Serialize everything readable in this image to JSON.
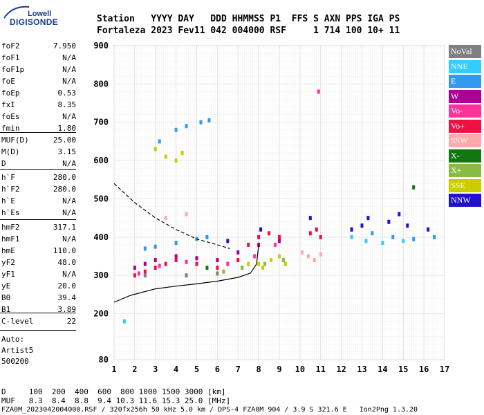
{
  "logo": {
    "top": "Lowell",
    "main": "DIGISONDE"
  },
  "header": {
    "line1": "Station   YYYY DAY   DDD HHMMSS P1  FFS S AXN PPS IGA PS",
    "line2": "Fortaleza 2023 Fev11 042 004000 RSF     1 714 100 10+ 11"
  },
  "params_group1": [
    {
      "name": "foF2",
      "value": "7.950"
    },
    {
      "name": "foF1",
      "value": "N/A"
    },
    {
      "name": "foF1p",
      "value": "N/A"
    },
    {
      "name": "foE",
      "value": "N/A"
    },
    {
      "name": "foEp",
      "value": "0.53"
    },
    {
      "name": "fxI",
      "value": "8.35"
    },
    {
      "name": "foEs",
      "value": "N/A"
    },
    {
      "name": "fmin",
      "value": "1.80"
    }
  ],
  "params_group2": [
    {
      "name": "MUF(D)",
      "value": "25.00"
    },
    {
      "name": "M(D)",
      "value": "3.15"
    },
    {
      "name": "D",
      "value": "N/A"
    }
  ],
  "params_group3": [
    {
      "name": "h`F",
      "value": "280.0"
    },
    {
      "name": "h`F2",
      "value": "280.0"
    },
    {
      "name": "h`E",
      "value": "N/A"
    },
    {
      "name": "h`Es",
      "value": "N/A"
    }
  ],
  "params_group4": [
    {
      "name": "hmF2",
      "value": "317.1"
    },
    {
      "name": "hmF1",
      "value": "N/A"
    },
    {
      "name": "hmE",
      "value": "110.0"
    },
    {
      "name": "yF2",
      "value": "48.0"
    },
    {
      "name": "yF1",
      "value": "N/A"
    },
    {
      "name": "yE",
      "value": "20.0"
    },
    {
      "name": "B0",
      "value": "39.4"
    },
    {
      "name": "B1",
      "value": "3.89"
    }
  ],
  "params_group5": [
    {
      "name": "C-level",
      "value": "22"
    }
  ],
  "auto": {
    "line1": "Auto:",
    "line2": "Artist5",
    "line3": "500200"
  },
  "legend": [
    {
      "label": "NoVal",
      "color": "#808080"
    },
    {
      "label": "NNE",
      "color": "#33ccff"
    },
    {
      "label": "E",
      "color": "#3399ee"
    },
    {
      "label": "W",
      "color": "#aa0099"
    },
    {
      "label": "Vo-",
      "color": "#ff3399"
    },
    {
      "label": "Vo+",
      "color": "#ee1144"
    },
    {
      "label": "SSW",
      "color": "#ffaaaa"
    },
    {
      "label": "X-",
      "color": "#117711"
    },
    {
      "label": "X+",
      "color": "#88bb44"
    },
    {
      "label": "SSE",
      "color": "#cccc00"
    },
    {
      "label": "NNW",
      "color": "#2211cc"
    }
  ],
  "footer": {
    "line1": "D     100  200  400  600  800 1000 1500 3000 [km]",
    "line2": "MUF   8.3  8.4  8.8  9.4 10.3 11.6 15.3 25.0 [MHz]",
    "line3": "FZA0M_2023042004000.RSF / 320fx256h 50 kHz 5.0 km / DPS-4 FZA0M 904 / 3.9 S 321.6 E   Ion2Png 1.3.20"
  },
  "chart_data": {
    "type": "scatter",
    "xlim": [
      1,
      17
    ],
    "ylim": [
      80,
      900
    ],
    "x_ticks": [
      1,
      2,
      3,
      4,
      5,
      6,
      7,
      8,
      9,
      10,
      11,
      12,
      13,
      14,
      15,
      16,
      17
    ],
    "y_ticks": [
      80,
      200,
      300,
      400,
      500,
      600,
      700,
      800,
      900
    ],
    "grid": true,
    "legend_position": "right",
    "series": [
      {
        "name": "SSE",
        "color": "#cccc00",
        "points": [
          [
            3.0,
            630
          ],
          [
            3.5,
            610
          ],
          [
            4.0,
            600
          ],
          [
            4.3,
            620
          ],
          [
            7.5,
            330
          ],
          [
            8.2,
            320
          ],
          [
            8.6,
            340
          ],
          [
            9.0,
            350
          ],
          [
            9.3,
            330
          ],
          [
            8.0,
            330
          ]
        ]
      },
      {
        "name": "E",
        "color": "#3399ee",
        "points": [
          [
            3.2,
            650
          ],
          [
            4.0,
            680
          ],
          [
            4.5,
            690
          ],
          [
            5.2,
            700
          ],
          [
            5.6,
            705
          ],
          [
            2.5,
            370
          ],
          [
            3.0,
            375
          ],
          [
            4.0,
            385
          ],
          [
            5.0,
            395
          ],
          [
            5.5,
            400
          ],
          [
            12.5,
            420
          ],
          [
            13.5,
            410
          ],
          [
            14.5,
            400
          ],
          [
            15.5,
            395
          ],
          [
            16.5,
            400
          ]
        ]
      },
      {
        "name": "Vo+",
        "color": "#ee1144",
        "points": [
          [
            2.0,
            300
          ],
          [
            2.5,
            310
          ],
          [
            3.0,
            320
          ],
          [
            3.5,
            330
          ],
          [
            4.0,
            340
          ],
          [
            5.0,
            330
          ],
          [
            6.0,
            320
          ],
          [
            7.0,
            340
          ],
          [
            7.5,
            380
          ],
          [
            8.0,
            400
          ],
          [
            8.5,
            410
          ],
          [
            9.0,
            400
          ],
          [
            10.5,
            410
          ],
          [
            10.8,
            420
          ],
          [
            11.0,
            400
          ]
        ]
      },
      {
        "name": "W",
        "color": "#aa0099",
        "points": [
          [
            2.0,
            320
          ],
          [
            2.5,
            330
          ],
          [
            3.0,
            340
          ],
          [
            4.0,
            350
          ],
          [
            5.0,
            345
          ],
          [
            6.0,
            340
          ],
          [
            7.0,
            360
          ],
          [
            8.0,
            380
          ],
          [
            9.0,
            390
          ]
        ]
      },
      {
        "name": "NNW",
        "color": "#2211cc",
        "points": [
          [
            12.5,
            420
          ],
          [
            13.0,
            430
          ],
          [
            13.3,
            450
          ],
          [
            14.3,
            440
          ],
          [
            14.8,
            460
          ],
          [
            15.2,
            430
          ],
          [
            16.2,
            420
          ],
          [
            10.5,
            450
          ],
          [
            8.1,
            420
          ],
          [
            6.5,
            390
          ]
        ]
      },
      {
        "name": "SSW",
        "color": "#ffaaaa",
        "points": [
          [
            10.1,
            360
          ],
          [
            10.4,
            350
          ],
          [
            10.7,
            340
          ],
          [
            11.0,
            355
          ],
          [
            3.5,
            450
          ],
          [
            4.5,
            460
          ]
        ]
      },
      {
        "name": "NNE",
        "color": "#33ccff",
        "points": [
          [
            12.5,
            400
          ],
          [
            13.2,
            390
          ],
          [
            14.0,
            385
          ],
          [
            15.0,
            390
          ],
          [
            1.5,
            180
          ]
        ]
      },
      {
        "name": "Vo-",
        "color": "#ff3399",
        "points": [
          [
            2.2,
            305
          ],
          [
            3.2,
            325
          ],
          [
            4.5,
            335
          ],
          [
            6.5,
            330
          ],
          [
            7.8,
            350
          ],
          [
            8.8,
            380
          ],
          [
            10.9,
            780
          ]
        ]
      },
      {
        "name": "X+",
        "color": "#88bb44",
        "points": [
          [
            6.3,
            310
          ],
          [
            7.2,
            320
          ],
          [
            8.3,
            330
          ],
          [
            9.2,
            340
          ]
        ]
      },
      {
        "name": "X-",
        "color": "#117711",
        "points": [
          [
            15.5,
            530
          ],
          [
            5.5,
            320
          ]
        ]
      },
      {
        "name": "NoVal",
        "color": "#808080",
        "points": [
          [
            2.5,
            300
          ],
          [
            4.5,
            300
          ],
          [
            6.0,
            305
          ]
        ]
      }
    ],
    "profile_curve": [
      [
        1.0,
        230
      ],
      [
        1.8,
        248
      ],
      [
        3.0,
        265
      ],
      [
        4.0,
        272
      ],
      [
        5.0,
        278
      ],
      [
        6.0,
        285
      ],
      [
        7.0,
        295
      ],
      [
        7.6,
        306
      ],
      [
        7.9,
        330
      ],
      [
        8.0,
        380
      ]
    ],
    "virtual_height_trace": [
      [
        1.0,
        540
      ],
      [
        2.0,
        490
      ],
      [
        3.0,
        450
      ],
      [
        4.0,
        420
      ],
      [
        5.0,
        395
      ],
      [
        6.0,
        380
      ],
      [
        6.6,
        370
      ]
    ]
  }
}
